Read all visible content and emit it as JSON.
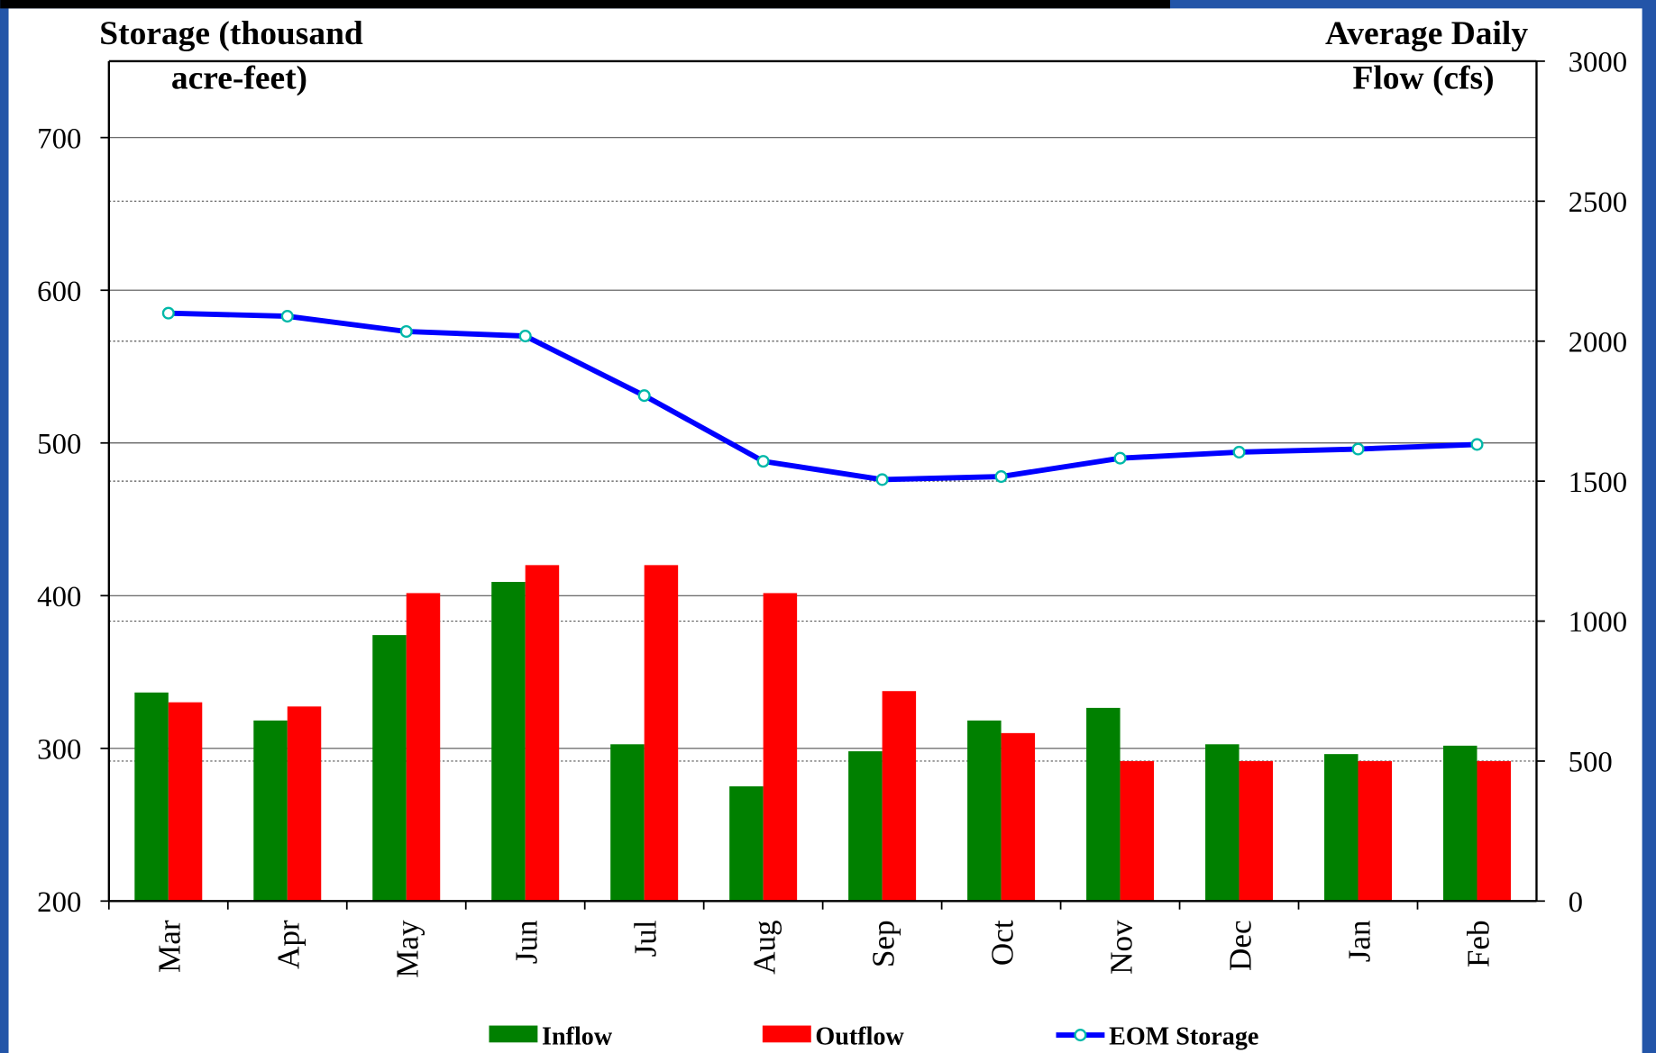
{
  "chart_data": {
    "type": "bar-line",
    "ylabel": [
      "Storage (thousand",
      "acre-feet)"
    ],
    "y2label": [
      "Average Daily",
      "Flow (cfs)"
    ],
    "categories": [
      "Mar",
      "Apr",
      "May",
      "Jun",
      "Jul",
      "Aug",
      "Sep",
      "Oct",
      "Nov",
      "Dec",
      "Jan",
      "Feb"
    ],
    "series": [
      {
        "name": "Inflow",
        "type": "bar",
        "axis": "y2",
        "color": "#008000",
        "values": [
          745,
          645,
          950,
          1140,
          560,
          410,
          535,
          645,
          690,
          560,
          525,
          555
        ]
      },
      {
        "name": "Outflow",
        "type": "bar",
        "axis": "y2",
        "color": "#ff0000",
        "values": [
          710,
          695,
          1100,
          1200,
          1200,
          1100,
          750,
          600,
          500,
          500,
          500,
          500
        ]
      },
      {
        "name": "EOM Storage",
        "type": "line",
        "axis": "y",
        "color": "#0000ff",
        "marker_color": "#00b8a8",
        "values": [
          585,
          583,
          573,
          570,
          531,
          488,
          476,
          478,
          490,
          494,
          496,
          499
        ]
      }
    ],
    "ylim": [
      200,
      750
    ],
    "yticks": [
      200,
      300,
      400,
      500,
      600,
      700
    ],
    "y2lim": [
      0,
      3000
    ],
    "y2ticks": [
      0,
      500,
      1000,
      1500,
      2000,
      2500,
      3000
    ],
    "grid": true
  }
}
